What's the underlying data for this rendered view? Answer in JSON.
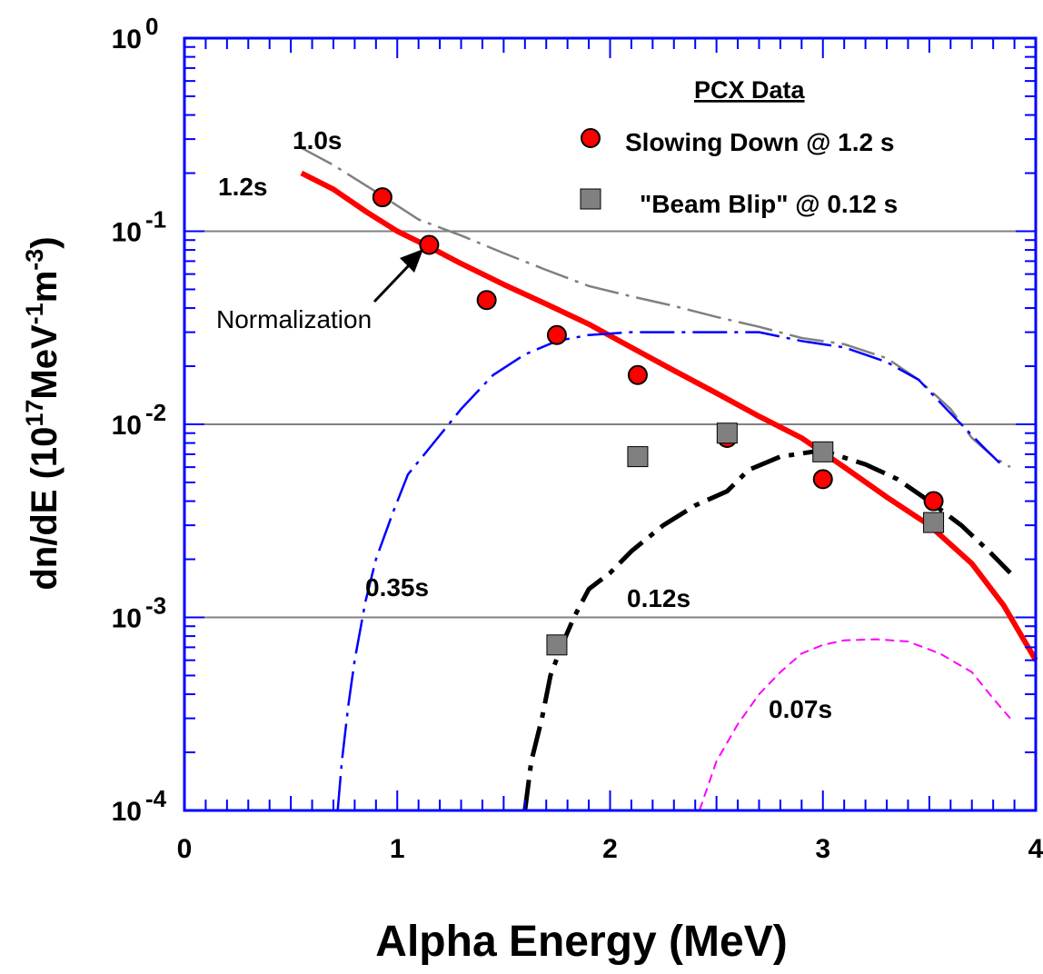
{
  "chart_data": {
    "type": "line",
    "title": "",
    "xlabel": "Alpha Energy (MeV)",
    "ylabel": {
      "prefix": "dn/dE (10",
      "sup1": "17",
      "mid1": "MeV",
      "sup2": "-1",
      "mid2": "m",
      "sup3": "-3",
      "suffix": ")"
    },
    "xlim": [
      0,
      4
    ],
    "ylim": [
      0.0001,
      1
    ],
    "yscale": "log",
    "grid": "horizontal lines at each decade",
    "x_ticks": [
      "0",
      "1",
      "2",
      "3",
      "4"
    ],
    "y_ticks": [
      {
        "value": 1,
        "base": "10",
        "exp": "0"
      },
      {
        "value": 0.1,
        "base": "10",
        "exp": "-1"
      },
      {
        "value": 0.01,
        "base": "10",
        "exp": "-2"
      },
      {
        "value": 0.001,
        "base": "10",
        "exp": "-3"
      },
      {
        "value": 0.0001,
        "base": "10",
        "exp": "-4"
      }
    ],
    "legend": {
      "title": "PCX Data",
      "position": "top-right",
      "entries": [
        {
          "label": "Slowing Down @ 1.2 s",
          "marker": "circle",
          "color": "#ff0000"
        },
        {
          "label": "\"Beam Blip\" @ 0.12  s",
          "marker": "square",
          "color": "#808080"
        }
      ]
    },
    "series": [
      {
        "name": "1.2s",
        "color": "#ff0000",
        "style": "solid",
        "points": [
          [
            0.55,
            0.2
          ],
          [
            0.7,
            0.165
          ],
          [
            0.85,
            0.127
          ],
          [
            1.0,
            0.1
          ],
          [
            1.15,
            0.083
          ],
          [
            1.3,
            0.068
          ],
          [
            1.5,
            0.053
          ],
          [
            1.7,
            0.042
          ],
          [
            1.9,
            0.033
          ],
          [
            2.1,
            0.025
          ],
          [
            2.3,
            0.019
          ],
          [
            2.5,
            0.0145
          ],
          [
            2.7,
            0.011
          ],
          [
            2.9,
            0.0085
          ],
          [
            3.1,
            0.006
          ],
          [
            3.3,
            0.0042
          ],
          [
            3.5,
            0.003
          ],
          [
            3.7,
            0.0019
          ],
          [
            3.85,
            0.00115
          ],
          [
            4.0,
            0.0006
          ]
        ]
      },
      {
        "name": "1.0s",
        "color": "#808080",
        "style": "dashed",
        "points": [
          [
            0.55,
            0.27
          ],
          [
            0.7,
            0.22
          ],
          [
            0.9,
            0.16
          ],
          [
            1.1,
            0.115
          ],
          [
            1.3,
            0.095
          ],
          [
            1.5,
            0.077
          ],
          [
            1.7,
            0.063
          ],
          [
            1.9,
            0.052
          ],
          [
            2.1,
            0.046
          ],
          [
            2.3,
            0.041
          ],
          [
            2.5,
            0.036
          ],
          [
            2.7,
            0.032
          ],
          [
            2.9,
            0.028
          ],
          [
            3.1,
            0.026
          ],
          [
            3.3,
            0.022
          ],
          [
            3.45,
            0.017
          ],
          [
            3.6,
            0.012
          ],
          [
            3.7,
            0.0085
          ],
          [
            3.8,
            0.0068
          ],
          [
            3.88,
            0.006
          ]
        ]
      },
      {
        "name": "0.35s",
        "color": "#0000ff",
        "style": "dashed",
        "points": [
          [
            0.72,
            0.0001
          ],
          [
            0.74,
            0.00018
          ],
          [
            0.77,
            0.00035
          ],
          [
            0.8,
            0.0006
          ],
          [
            0.85,
            0.0012
          ],
          [
            0.9,
            0.002
          ],
          [
            0.98,
            0.0035
          ],
          [
            1.05,
            0.0055
          ],
          [
            1.15,
            0.0075
          ],
          [
            1.3,
            0.012
          ],
          [
            1.45,
            0.018
          ],
          [
            1.6,
            0.023
          ],
          [
            1.75,
            0.027
          ],
          [
            1.9,
            0.029
          ],
          [
            2.1,
            0.03
          ],
          [
            2.3,
            0.03
          ],
          [
            2.5,
            0.03
          ],
          [
            2.7,
            0.03
          ],
          [
            2.9,
            0.027
          ],
          [
            3.1,
            0.025
          ],
          [
            3.3,
            0.021
          ],
          [
            3.45,
            0.017
          ],
          [
            3.55,
            0.013
          ],
          [
            3.65,
            0.01
          ],
          [
            3.75,
            0.0077
          ],
          [
            3.85,
            0.006
          ]
        ]
      },
      {
        "name": "0.12s",
        "color": "#000000",
        "style": "dashed",
        "points": [
          [
            1.6,
            0.0001
          ],
          [
            1.63,
            0.00018
          ],
          [
            1.68,
            0.0003
          ],
          [
            1.72,
            0.0005
          ],
          [
            1.77,
            0.0007
          ],
          [
            1.83,
            0.001
          ],
          [
            1.9,
            0.0014
          ],
          [
            2.0,
            0.0017
          ],
          [
            2.1,
            0.0022
          ],
          [
            2.25,
            0.003
          ],
          [
            2.4,
            0.0038
          ],
          [
            2.55,
            0.0045
          ],
          [
            2.65,
            0.0058
          ],
          [
            2.8,
            0.0068
          ],
          [
            2.95,
            0.0072
          ],
          [
            3.05,
            0.007
          ],
          [
            3.2,
            0.0062
          ],
          [
            3.35,
            0.0052
          ],
          [
            3.5,
            0.004
          ],
          [
            3.65,
            0.003
          ],
          [
            3.78,
            0.0022
          ],
          [
            3.88,
            0.0017
          ]
        ]
      },
      {
        "name": "0.07s",
        "color": "#ff00ff",
        "style": "dashed",
        "points": [
          [
            2.42,
            0.0001
          ],
          [
            2.5,
            0.00018
          ],
          [
            2.6,
            0.00028
          ],
          [
            2.7,
            0.0004
          ],
          [
            2.8,
            0.00052
          ],
          [
            2.9,
            0.00065
          ],
          [
            3.0,
            0.00072
          ],
          [
            3.1,
            0.00076
          ],
          [
            3.25,
            0.00077
          ],
          [
            3.4,
            0.00075
          ],
          [
            3.55,
            0.00065
          ],
          [
            3.7,
            0.00052
          ],
          [
            3.8,
            0.00038
          ],
          [
            3.88,
            0.0003
          ]
        ]
      }
    ],
    "scatter": [
      {
        "name": "Slowing Down @ 1.2 s",
        "marker": "circle",
        "color": "#ff0000",
        "points": [
          [
            0.93,
            0.15
          ],
          [
            1.15,
            0.085
          ],
          [
            1.42,
            0.044
          ],
          [
            1.75,
            0.029
          ],
          [
            2.13,
            0.018
          ],
          [
            2.55,
            0.0085
          ],
          [
            3.0,
            0.0052
          ],
          [
            3.52,
            0.004
          ]
        ]
      },
      {
        "name": "\"Beam Blip\" @ 0.12  s",
        "marker": "square",
        "color": "#808080",
        "points": [
          [
            1.75,
            0.00072
          ],
          [
            2.13,
            0.0068
          ],
          [
            2.55,
            0.009
          ],
          [
            3.0,
            0.0072
          ],
          [
            3.52,
            0.0031
          ]
        ]
      }
    ],
    "annotations": [
      {
        "id": "label-1-0s",
        "text": "1.0s",
        "x": 0.52,
        "y": 0.3
      },
      {
        "id": "label-1-2s",
        "text": "1.2s",
        "x": 0.17,
        "y": 0.16
      },
      {
        "id": "label-0-35s",
        "text": "0.35s",
        "x": 0.88,
        "y": 0.0014
      },
      {
        "id": "label-0-12s",
        "text": "0.12s",
        "x": 2.08,
        "y": 0.00105
      },
      {
        "id": "label-0-07s",
        "text": "0.07s",
        "x": 2.75,
        "y": 0.00028
      },
      {
        "id": "label-normalization",
        "text": "Normalization",
        "x": 0.15,
        "y": 0.028
      }
    ]
  }
}
